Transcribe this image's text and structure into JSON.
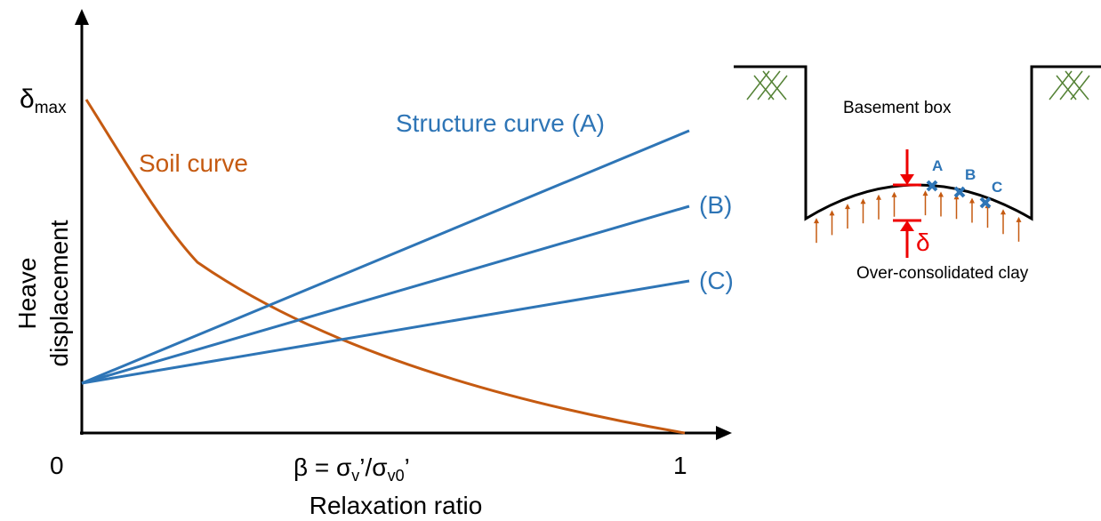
{
  "graph": {
    "y_label_symbol": "δ",
    "y_label_subscript": "max",
    "origin_label": "0",
    "x_end_label": "1",
    "x_formula": [
      "β = σ",
      "v",
      "’/σ",
      "v0",
      "’"
    ],
    "x_title": "Relaxation ratio",
    "y_title": [
      "Heave",
      "displacement"
    ],
    "soil_label": "Soil curve",
    "structure_labels": [
      "Structure curve (A)",
      "(B)",
      "(C)"
    ]
  },
  "section": {
    "title": "Basement box",
    "points": [
      "A",
      "B",
      "C"
    ],
    "delta": "δ",
    "soil": "Over-consolidated clay"
  }
}
